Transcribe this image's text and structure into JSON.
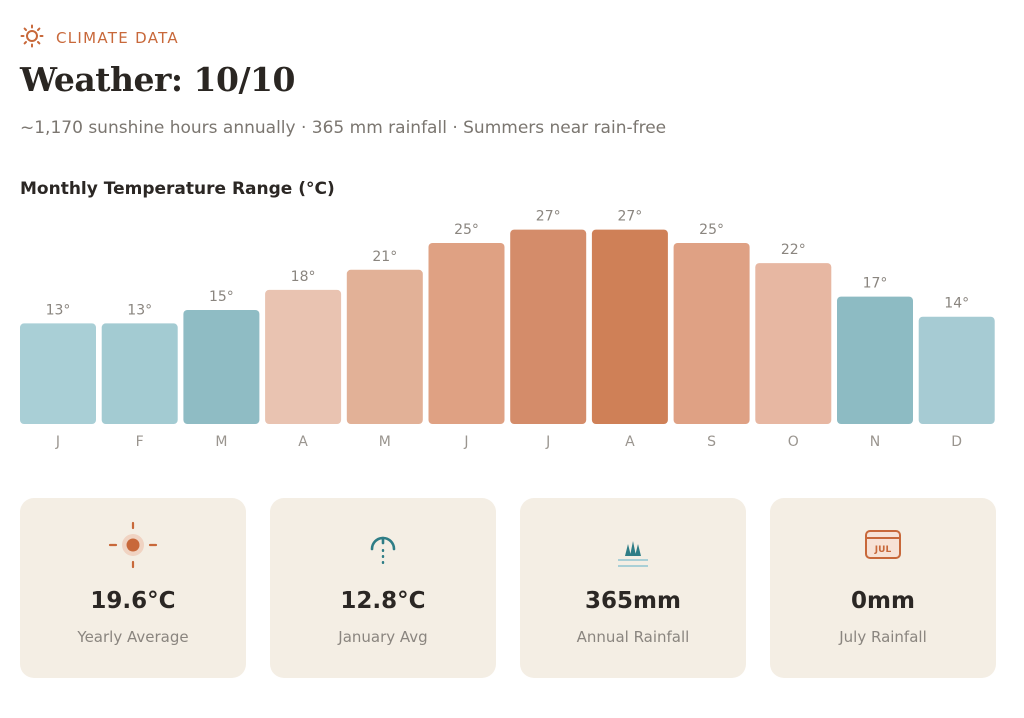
{
  "header": {
    "kicker": "CLIMATE DATA",
    "kicker_icon": "sun-icon",
    "title": "Weather: 10/10",
    "subtitle": "~1,170 sunshine hours annually · 365 mm rainfall · Summers near rain-free"
  },
  "chart_title": "Monthly Temperature Range (°C)",
  "chart_data": {
    "type": "bar",
    "title": "Monthly Temperature Range (°C)",
    "categories": [
      "J",
      "F",
      "M",
      "A",
      "M",
      "J",
      "J",
      "A",
      "S",
      "O",
      "N",
      "D"
    ],
    "values": [
      13,
      13,
      15,
      18,
      21,
      25,
      27,
      27,
      25,
      22,
      17,
      14
    ],
    "data_labels": [
      "13°",
      "13°",
      "15°",
      "18°",
      "21°",
      "25°",
      "27°",
      "27°",
      "25°",
      "22°",
      "17°",
      "14°"
    ],
    "bar_colors": [
      "#a9cfd6",
      "#a3cbd2",
      "#8fbcc4",
      "#e9c3b1",
      "#e2b197",
      "#dfa183",
      "#d48c6a",
      "#cf8057",
      "#dfa184",
      "#e7b7a2",
      "#8dbbc3",
      "#a6cbd3"
    ],
    "xlabel": "",
    "ylabel": "",
    "ylim": [
      0,
      30
    ],
    "grid": false,
    "legend": "none"
  },
  "stats": [
    {
      "icon": "sun-icon",
      "value": "19.6°C",
      "label": "Yearly Average"
    },
    {
      "icon": "thermometer-icon",
      "value": "12.8°C",
      "label": "January Avg"
    },
    {
      "icon": "rain-icon",
      "value": "365mm",
      "label": "Annual Rainfall"
    },
    {
      "icon": "calendar-icon",
      "value": "0mm",
      "label": "July Rainfall",
      "icon_text": "JUL"
    }
  ],
  "colors": {
    "accent": "#c8683a",
    "teal": "#2e7d86",
    "card_bg": "#f4eee4"
  }
}
